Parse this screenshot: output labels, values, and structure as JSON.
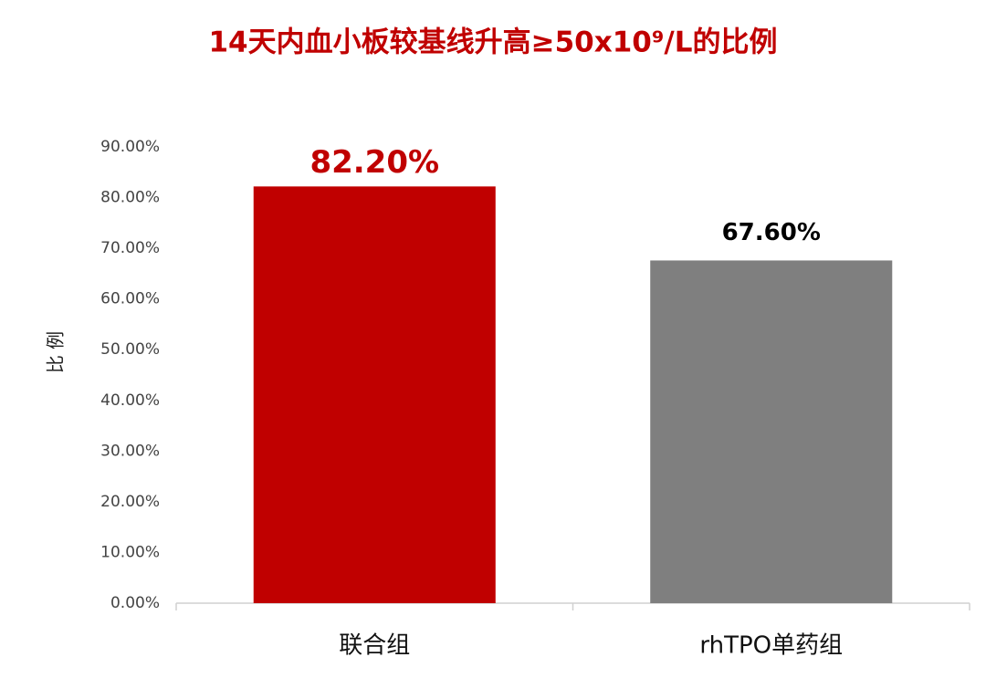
{
  "chart_data": {
    "type": "bar",
    "title": "14天内血小板较基线升高≥50x10⁹/L的比例",
    "y_label": "比 例",
    "categories": [
      "联合组",
      "rhTPO单药组"
    ],
    "values": [
      82.2,
      67.6
    ],
    "value_labels": [
      "82.20%",
      "67.60%"
    ],
    "colors": [
      "#c00000",
      "#7f7f7f"
    ],
    "label_colors": [
      "#c00000",
      "#000000"
    ],
    "ylim": [
      0,
      90
    ],
    "yticks": [
      {
        "value": 0,
        "label": "0.00%"
      },
      {
        "value": 10,
        "label": "10.00%"
      },
      {
        "value": 20,
        "label": "20.00%"
      },
      {
        "value": 30,
        "label": "30.00%"
      },
      {
        "value": 40,
        "label": "40.00%"
      },
      {
        "value": 50,
        "label": "50.00%"
      },
      {
        "value": 60,
        "label": "60.00%"
      },
      {
        "value": 70,
        "label": "70.00%"
      },
      {
        "value": 80,
        "label": "80.00%"
      },
      {
        "value": 90,
        "label": "90.00%"
      }
    ],
    "grid": false
  }
}
